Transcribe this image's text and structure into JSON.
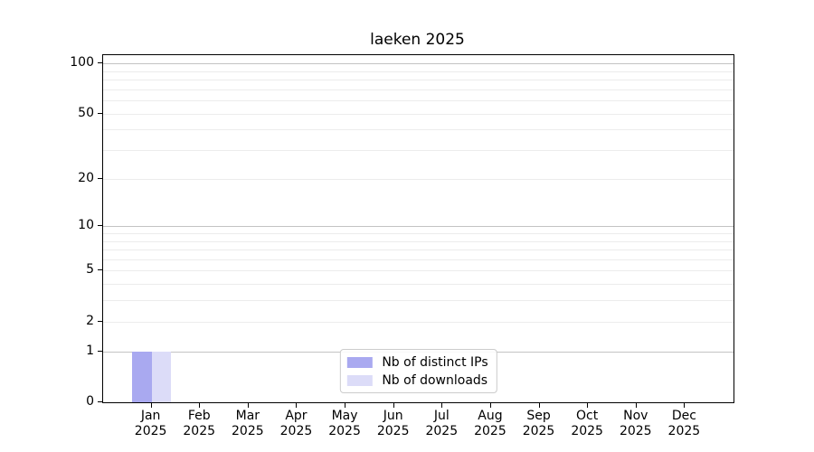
{
  "title": "laeken 2025",
  "chart_data": {
    "type": "bar",
    "title": "laeken 2025",
    "xlabel": "",
    "ylabel": "",
    "categories": [
      "Jan",
      "Feb",
      "Mar",
      "Apr",
      "May",
      "Jun",
      "Jul",
      "Aug",
      "Sep",
      "Oct",
      "Nov",
      "Dec"
    ],
    "category_year": "2025",
    "series": [
      {
        "name": "Nb of distinct IPs",
        "color": "#a9a9f0",
        "values": [
          1,
          0,
          0,
          0,
          0,
          0,
          0,
          0,
          0,
          0,
          0,
          0
        ]
      },
      {
        "name": "Nb of downloads",
        "color": "#dcdcf8",
        "values": [
          1,
          0,
          0,
          0,
          0,
          0,
          0,
          0,
          0,
          0,
          0,
          0
        ]
      }
    ],
    "yscale": "log1p",
    "ylim": [
      0,
      112
    ],
    "yticks": [
      0,
      1,
      2,
      5,
      10,
      20,
      50,
      100
    ],
    "grid_major": [
      1,
      10,
      100
    ],
    "grid_minor": [
      2,
      3,
      4,
      5,
      6,
      7,
      8,
      9,
      20,
      30,
      40,
      50,
      60,
      70,
      80,
      90
    ],
    "grid": true,
    "legend_position": "lower center inside"
  },
  "colors": {
    "spine": "#000000",
    "grid_major": "#c3c3c3",
    "grid_minor": "#ececec",
    "background": "#ffffff"
  }
}
